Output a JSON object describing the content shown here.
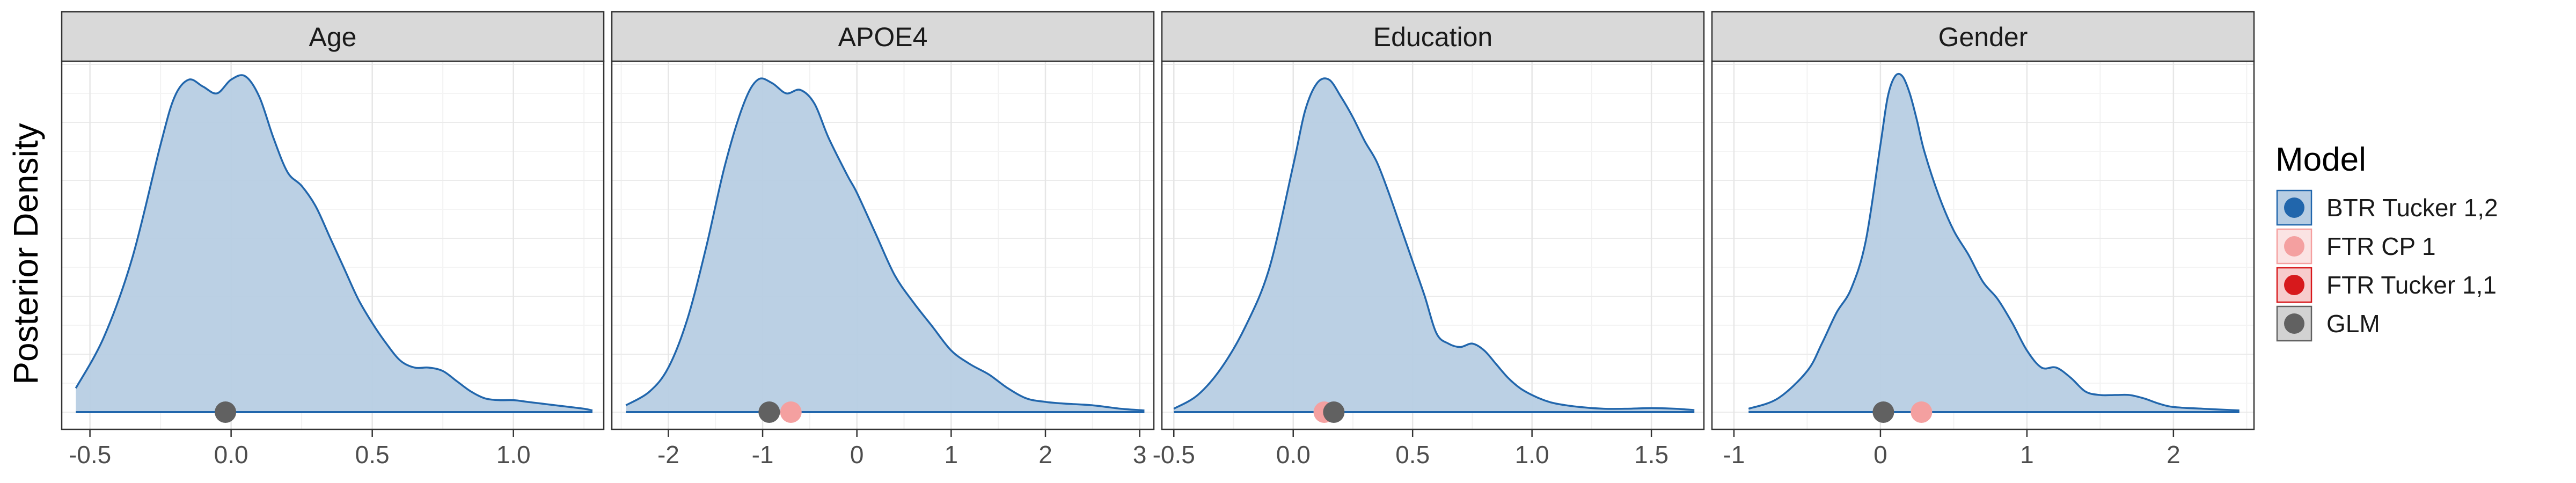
{
  "chart_data": {
    "type": "area",
    "ylabel": "Posterior Density",
    "legend": {
      "title": "Model",
      "placement": "right",
      "entries": [
        {
          "label": "BTR Tucker 1,2",
          "color": "#2166ac"
        },
        {
          "label": "FTR CP 1",
          "color": "#f4a0a0"
        },
        {
          "label": "FTR Tucker 1,1",
          "color": "#d7191c"
        },
        {
          "label": "GLM",
          "color": "#616161"
        }
      ]
    },
    "density_fill": "#b7cde3",
    "density_line": "#2166ac",
    "panels": [
      {
        "name": "Age",
        "xlim": [
          -0.6,
          1.32
        ],
        "xticks": [
          -0.5,
          0.0,
          0.5,
          1.0
        ],
        "xtick_labels": [
          "-0.5",
          "0.0",
          "0.5",
          "1.0"
        ],
        "density": {
          "x": [
            -0.55,
            -0.45,
            -0.35,
            -0.25,
            -0.2,
            -0.15,
            -0.1,
            -0.05,
            0.0,
            0.05,
            0.1,
            0.15,
            0.2,
            0.25,
            0.3,
            0.35,
            0.4,
            0.45,
            0.5,
            0.55,
            0.6,
            0.65,
            0.7,
            0.75,
            0.8,
            0.85,
            0.9,
            0.95,
            1.0,
            1.05,
            1.1,
            1.15,
            1.2,
            1.25,
            1.28
          ],
          "y": [
            0.07,
            0.22,
            0.45,
            0.78,
            0.92,
            0.97,
            0.95,
            0.93,
            0.97,
            0.98,
            0.92,
            0.8,
            0.7,
            0.66,
            0.6,
            0.51,
            0.42,
            0.33,
            0.26,
            0.2,
            0.15,
            0.13,
            0.13,
            0.12,
            0.09,
            0.06,
            0.04,
            0.035,
            0.035,
            0.03,
            0.025,
            0.02,
            0.015,
            0.01,
            0.005
          ]
        },
        "points": [
          {
            "model": "GLM",
            "x": -0.02
          }
        ]
      },
      {
        "name": "APOE4",
        "xlim": [
          -2.6,
          3.15
        ],
        "xticks": [
          -2,
          -1,
          0,
          1,
          2,
          3
        ],
        "xtick_labels": [
          "-2",
          "-1",
          "0",
          "1",
          "2",
          "3"
        ],
        "density": {
          "x": [
            -2.45,
            -2.2,
            -2.0,
            -1.8,
            -1.6,
            -1.4,
            -1.2,
            -1.05,
            -0.9,
            -0.75,
            -0.6,
            -0.45,
            -0.3,
            -0.1,
            0.0,
            0.2,
            0.4,
            0.6,
            0.8,
            1.0,
            1.2,
            1.4,
            1.6,
            1.8,
            2.0,
            2.2,
            2.5,
            2.8,
            3.05
          ],
          "y": [
            0.02,
            0.06,
            0.13,
            0.27,
            0.48,
            0.72,
            0.9,
            0.97,
            0.96,
            0.93,
            0.94,
            0.9,
            0.8,
            0.69,
            0.64,
            0.52,
            0.4,
            0.32,
            0.25,
            0.18,
            0.14,
            0.11,
            0.07,
            0.04,
            0.03,
            0.025,
            0.02,
            0.01,
            0.005
          ]
        },
        "points": [
          {
            "model": "FTR CP 1",
            "x": -0.7
          },
          {
            "model": "GLM",
            "x": -0.93
          }
        ]
      },
      {
        "name": "Education",
        "xlim": [
          -0.55,
          1.72
        ],
        "xticks": [
          -0.5,
          0.0,
          0.5,
          1.0,
          1.5
        ],
        "xtick_labels": [
          "-0.5",
          "0.0",
          "0.5",
          "1.0",
          "1.5"
        ],
        "density": {
          "x": [
            -0.5,
            -0.4,
            -0.3,
            -0.2,
            -0.1,
            0.0,
            0.05,
            0.1,
            0.15,
            0.2,
            0.25,
            0.3,
            0.35,
            0.4,
            0.45,
            0.5,
            0.55,
            0.6,
            0.65,
            0.7,
            0.75,
            0.8,
            0.85,
            0.9,
            0.95,
            1.0,
            1.05,
            1.1,
            1.2,
            1.3,
            1.4,
            1.5,
            1.6,
            1.68
          ],
          "y": [
            0.01,
            0.05,
            0.13,
            0.25,
            0.42,
            0.72,
            0.88,
            0.96,
            0.97,
            0.92,
            0.86,
            0.79,
            0.73,
            0.64,
            0.54,
            0.44,
            0.34,
            0.23,
            0.2,
            0.19,
            0.2,
            0.18,
            0.14,
            0.1,
            0.07,
            0.05,
            0.035,
            0.025,
            0.015,
            0.01,
            0.01,
            0.012,
            0.01,
            0.006
          ]
        },
        "points": [
          {
            "model": "FTR CP 1",
            "x": 0.13
          },
          {
            "model": "GLM",
            "x": 0.17
          }
        ]
      },
      {
        "name": "Gender",
        "xlim": [
          -1.15,
          2.55
        ],
        "xticks": [
          -1,
          0,
          1,
          2
        ],
        "xtick_labels": [
          "-1",
          "0",
          "1",
          "2"
        ],
        "density": {
          "x": [
            -0.9,
            -0.7,
            -0.5,
            -0.4,
            -0.3,
            -0.2,
            -0.1,
            0.0,
            0.05,
            0.1,
            0.15,
            0.2,
            0.25,
            0.3,
            0.4,
            0.5,
            0.6,
            0.7,
            0.8,
            0.9,
            1.0,
            1.1,
            1.2,
            1.3,
            1.4,
            1.5,
            1.6,
            1.7,
            1.8,
            1.9,
            2.0,
            2.2,
            2.45
          ],
          "y": [
            0.01,
            0.04,
            0.12,
            0.2,
            0.29,
            0.36,
            0.5,
            0.78,
            0.92,
            0.98,
            0.98,
            0.93,
            0.85,
            0.76,
            0.63,
            0.53,
            0.46,
            0.38,
            0.33,
            0.26,
            0.18,
            0.13,
            0.13,
            0.1,
            0.06,
            0.05,
            0.05,
            0.05,
            0.04,
            0.025,
            0.015,
            0.01,
            0.005
          ]
        },
        "points": [
          {
            "model": "GLM",
            "x": 0.02
          },
          {
            "model": "FTR CP 1",
            "x": 0.28
          }
        ]
      }
    ]
  }
}
